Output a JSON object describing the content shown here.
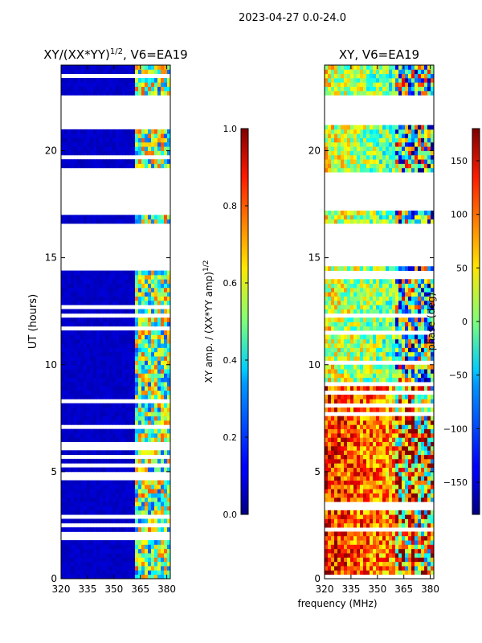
{
  "figure": {
    "suptitle": "2023-04-27 0.0-24.0",
    "shared_xlabel": "frequency (MHz)"
  },
  "chart_data": [
    {
      "type": "heatmap",
      "title_main": "XY/(XX*YY)",
      "title_sup": "1/2",
      "title_tail": ", V6=EA19",
      "xlabel": "",
      "ylabel": "UT (hours)",
      "xlim": [
        320,
        382
      ],
      "ylim": [
        0,
        24
      ],
      "x_ticks": [
        320,
        335,
        350,
        365,
        380
      ],
      "y_ticks": [
        0,
        5,
        10,
        15,
        20
      ],
      "colorbar": {
        "label_main": "XY amp. / (XX*YY amp)",
        "label_sup": "1/2",
        "range": [
          0.0,
          1.0
        ],
        "ticks": [
          0.0,
          0.2,
          0.4,
          0.6,
          0.8,
          1.0
        ],
        "tick_labels": [
          "0.0",
          "0.2",
          "0.4",
          "0.6",
          "0.8",
          "1.0"
        ],
        "colormap": "jet"
      },
      "data_gaps_hours": [
        [
          21.1,
          22.7
        ],
        [
          17.1,
          19.1
        ],
        [
          14.5,
          16.7
        ]
      ],
      "rfi_band_MHz": [
        362,
        382
      ],
      "background_value": 0.05
    },
    {
      "type": "heatmap",
      "title": "XY, V6=EA19",
      "xlabel": "",
      "ylabel": "",
      "xlim": [
        320,
        382
      ],
      "ylim": [
        0,
        24
      ],
      "x_ticks": [
        320,
        335,
        350,
        365,
        380
      ],
      "y_ticks": [
        0,
        5,
        10,
        15,
        20
      ],
      "colorbar": {
        "label": "phase (deg)",
        "range": [
          -180,
          180
        ],
        "ticks": [
          -150,
          -100,
          -50,
          0,
          50,
          100,
          150
        ],
        "tick_labels": [
          "−150",
          "−100",
          "−50",
          "0",
          "50",
          "100",
          "150"
        ],
        "colormap": "jet"
      },
      "data_gaps_hours": [
        [
          21.1,
          22.7
        ],
        [
          17.1,
          19.1
        ],
        [
          14.5,
          16.7
        ]
      ]
    }
  ]
}
